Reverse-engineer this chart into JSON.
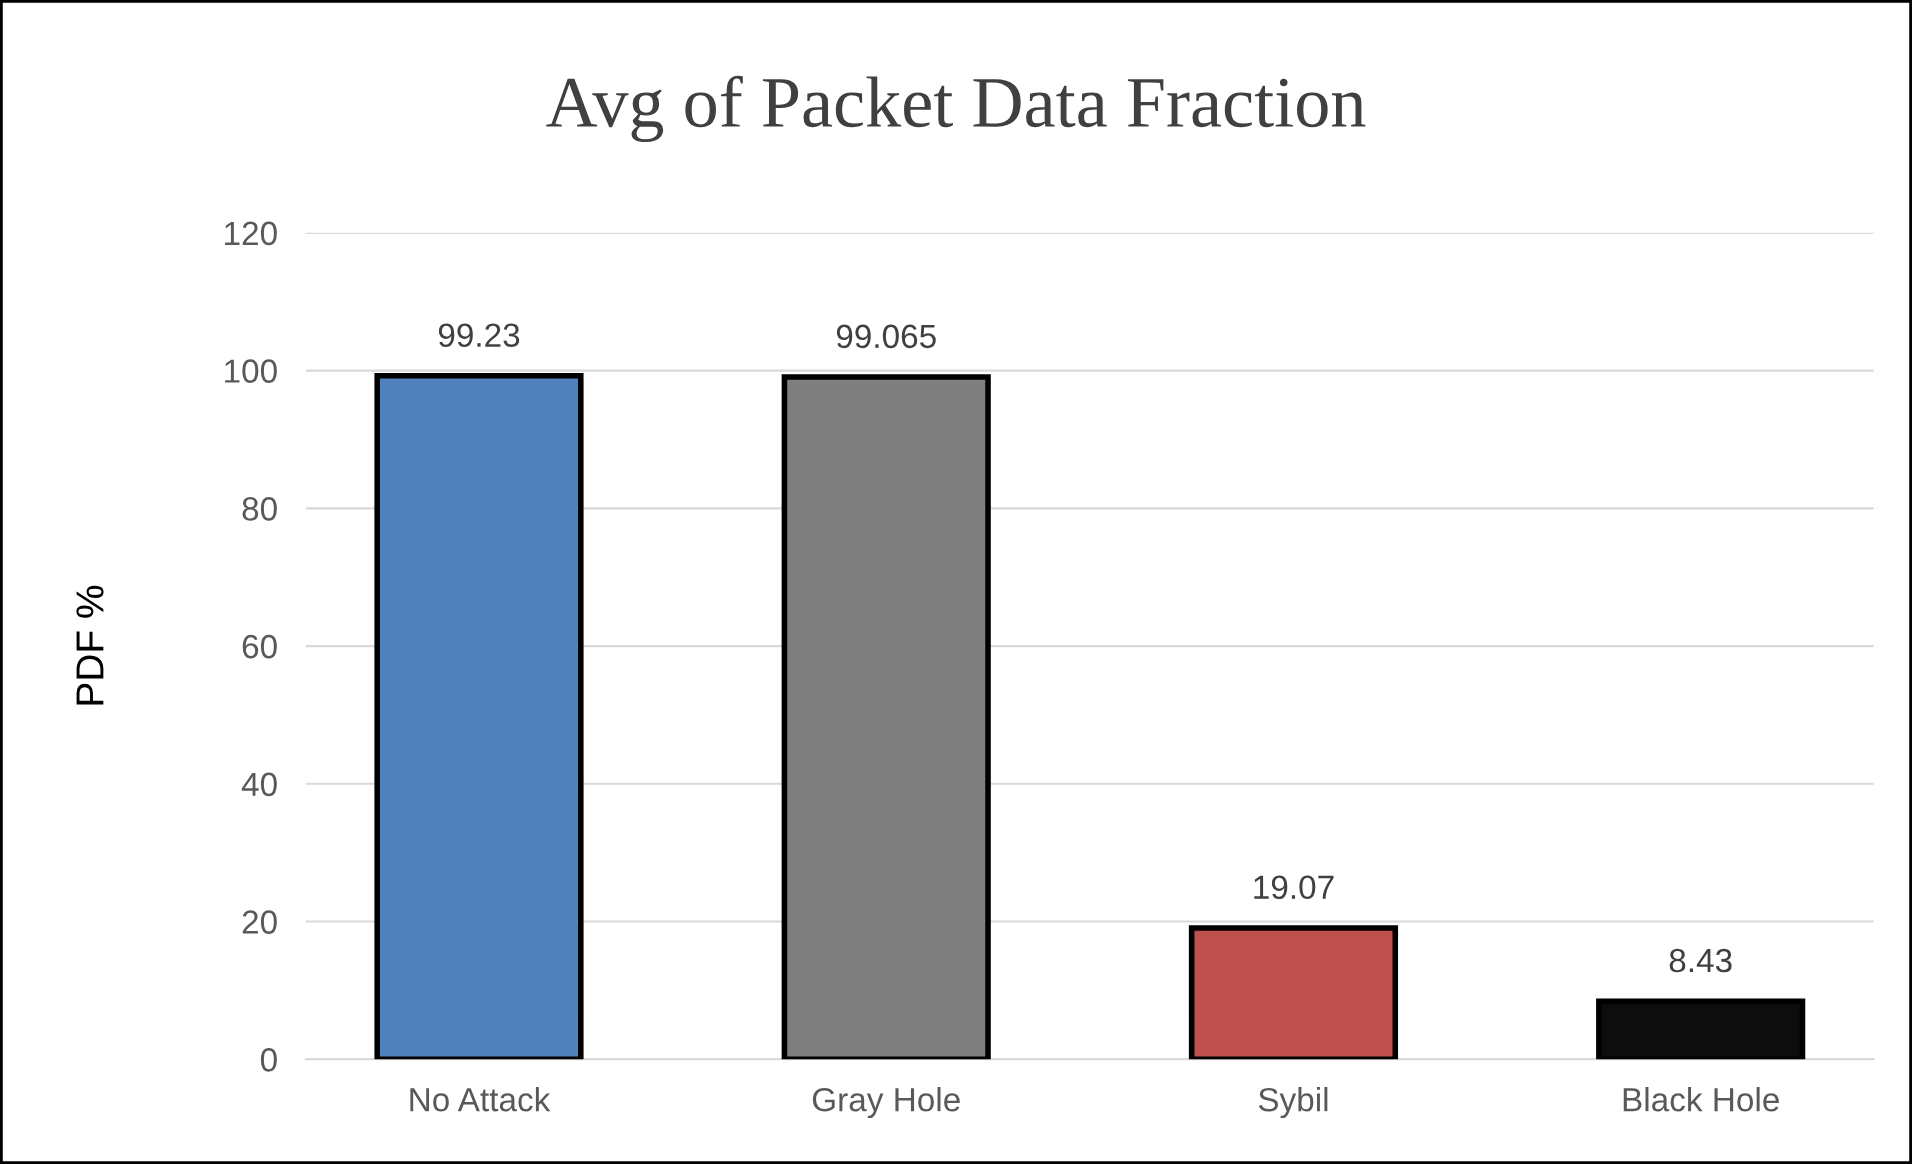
{
  "chart_data": {
    "type": "bar",
    "title": "Avg of Packet Data Fraction",
    "ylabel": "PDF %",
    "categories": [
      "No Attack",
      "Gray Hole",
      "Sybil",
      "Black Hole"
    ],
    "values": [
      99.23,
      99.065,
      19.07,
      8.43
    ],
    "colors": [
      "#4f81bd",
      "#7f7f7f",
      "#c0504d",
      "#0d0d0d"
    ],
    "ylim": [
      0,
      120
    ],
    "yticks": [
      0,
      20,
      40,
      60,
      80,
      100,
      120
    ],
    "grid": "y",
    "data_labels": true,
    "legend": false
  }
}
